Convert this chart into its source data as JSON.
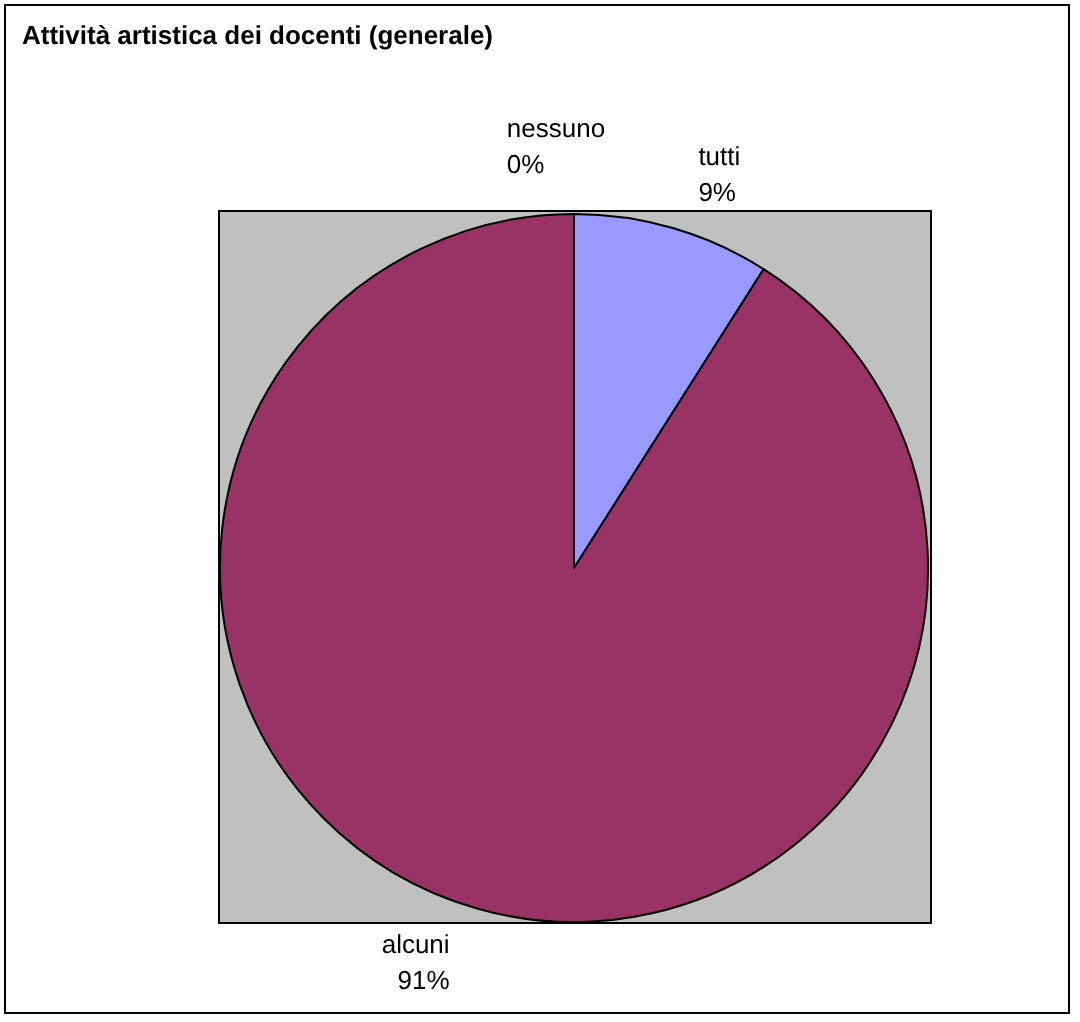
{
  "chart_data": {
    "type": "pie",
    "title": "Attività artistica dei docenti (generale)",
    "categories": [
      "tutti",
      "alcuni",
      "nessuno"
    ],
    "values": [
      9,
      91,
      0
    ],
    "value_labels": [
      "9%",
      "91%",
      "0%"
    ],
    "colors": [
      "#9999ff",
      "#993366",
      "#ffffcc"
    ],
    "legend": false
  }
}
